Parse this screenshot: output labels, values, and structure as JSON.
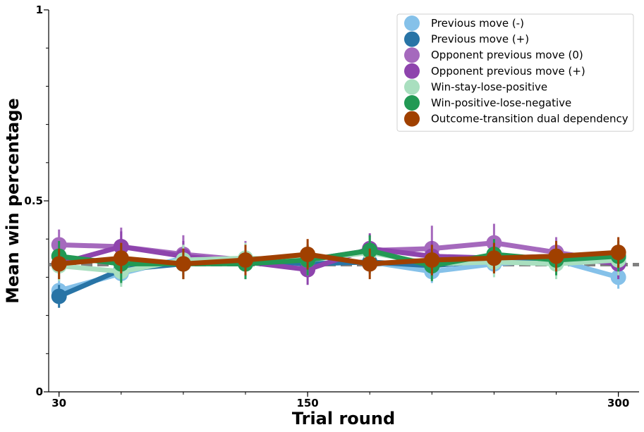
{
  "chart_data": {
    "type": "line",
    "xlabel": "Trial round",
    "ylabel": "Mean win percentage",
    "xlim": [
      25,
      310
    ],
    "ylim": [
      0,
      1
    ],
    "x_ticks": [
      30,
      150,
      300
    ],
    "x_minor_ticks": [
      30,
      60,
      90,
      120,
      150,
      180,
      210,
      240,
      270,
      300
    ],
    "y_ticks": [
      0,
      0.5,
      1
    ],
    "y_minor_ticks": [
      0.1,
      0.2,
      0.3,
      0.4,
      0.6,
      0.7,
      0.8,
      0.9
    ],
    "reference_line": {
      "y": 0.333,
      "style": "dashed",
      "color": "#808080"
    },
    "grid": false,
    "legend_position": "top-right",
    "x": [
      30,
      60,
      90,
      120,
      150,
      180,
      210,
      240,
      270,
      300
    ],
    "series": [
      {
        "name": "Previous move (-)",
        "color": "#85c1e9",
        "values": [
          0.265,
          0.31,
          0.35,
          0.34,
          0.335,
          0.34,
          0.315,
          0.335,
          0.345,
          0.3
        ],
        "errors": [
          0.03,
          0.03,
          0.03,
          0.03,
          0.03,
          0.03,
          0.03,
          0.03,
          0.03,
          0.03
        ]
      },
      {
        "name": "Previous move (+)",
        "color": "#2874a6",
        "values": [
          0.25,
          0.32,
          0.335,
          0.345,
          0.335,
          0.34,
          0.33,
          0.345,
          0.34,
          0.35
        ],
        "errors": [
          0.03,
          0.03,
          0.03,
          0.03,
          0.03,
          0.03,
          0.03,
          0.03,
          0.03,
          0.03
        ]
      },
      {
        "name": "Opponent previous move (0)",
        "color": "#a569bd",
        "values": [
          0.385,
          0.38,
          0.36,
          0.345,
          0.345,
          0.37,
          0.375,
          0.39,
          0.365,
          0.34
        ],
        "errors": [
          0.04,
          0.05,
          0.05,
          0.05,
          0.04,
          0.04,
          0.06,
          0.05,
          0.04,
          0.04
        ]
      },
      {
        "name": "Opponent previous move (+)",
        "color": "#8e44ad",
        "values": [
          0.335,
          0.38,
          0.355,
          0.34,
          0.32,
          0.375,
          0.355,
          0.35,
          0.355,
          0.335
        ],
        "errors": [
          0.04,
          0.04,
          0.04,
          0.04,
          0.04,
          0.04,
          0.04,
          0.04,
          0.04,
          0.04
        ]
      },
      {
        "name": "Win-stay-lose-positive",
        "color": "#a9dfbf",
        "values": [
          0.33,
          0.315,
          0.345,
          0.35,
          0.345,
          0.365,
          0.335,
          0.34,
          0.335,
          0.345
        ],
        "errors": [
          0.04,
          0.04,
          0.04,
          0.04,
          0.04,
          0.04,
          0.04,
          0.04,
          0.04,
          0.04
        ]
      },
      {
        "name": "Win-positive-lose-negative",
        "color": "#229954",
        "values": [
          0.355,
          0.335,
          0.335,
          0.335,
          0.345,
          0.37,
          0.33,
          0.36,
          0.345,
          0.355
        ],
        "errors": [
          0.04,
          0.05,
          0.04,
          0.04,
          0.04,
          0.04,
          0.04,
          0.04,
          0.04,
          0.04
        ]
      },
      {
        "name": "Outcome-transition dual dependency",
        "color": "#a04000",
        "values": [
          0.335,
          0.35,
          0.335,
          0.345,
          0.36,
          0.335,
          0.345,
          0.35,
          0.355,
          0.365
        ],
        "errors": [
          0.04,
          0.04,
          0.04,
          0.04,
          0.04,
          0.04,
          0.04,
          0.04,
          0.04,
          0.04
        ]
      }
    ]
  }
}
